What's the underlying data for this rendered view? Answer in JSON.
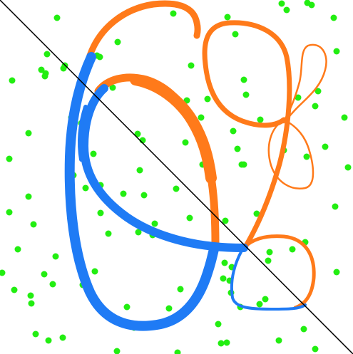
{
  "colors": {
    "background": "#ffffff",
    "dots": "#22ee11",
    "orange_stroke": "#ff7a1a",
    "blue_stroke": "#1f7bf5",
    "diagonal_line": "#000000"
  },
  "dot_count": 110
}
